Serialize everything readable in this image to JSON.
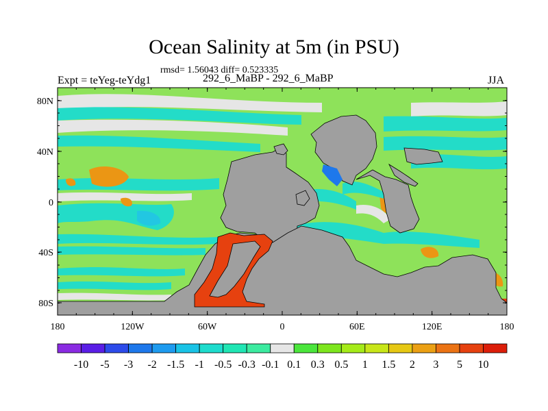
{
  "title": "Ocean Salinity at 5m (in PSU)",
  "stats": "rmsd= 1.56043 diff= 0.523335",
  "experiment": "Expt = teYeg-teYdg1",
  "subtitle": "292_6_MaBP - 292_6_MaBP",
  "season": "JJA",
  "lat_ticks": [
    "80N",
    "40N",
    "0",
    "40S",
    "80S"
  ],
  "lon_ticks": [
    "180",
    "120W",
    "60W",
    "0",
    "60E",
    "120E",
    "180"
  ],
  "colorbar": {
    "labels": [
      "-10",
      "-5",
      "-3",
      "-2",
      "-1.5",
      "-1",
      "-0.5",
      "-0.3",
      "-0.1",
      "0.1",
      "0.3",
      "0.5",
      "1",
      "1.5",
      "2",
      "3",
      "5",
      "10"
    ],
    "colors": [
      "#8a2be2",
      "#5a1ee6",
      "#2d4bea",
      "#1e78eb",
      "#1e9bef",
      "#19c3e6",
      "#1edccd",
      "#20e6b4",
      "#3ceba0",
      "#e6e6e6",
      "#4be63c",
      "#7de61e",
      "#a5eb19",
      "#c8e619",
      "#e6c814",
      "#eba014",
      "#eb7314",
      "#e6410f",
      "#dc1e0a"
    ]
  },
  "map_colors": {
    "land": "#9f9f9f",
    "ocean_base": "#8ee25a",
    "neutral": "#e6e6e6",
    "cyan": "#23dcc8",
    "teal": "#22c7e2",
    "blue": "#1e78eb",
    "orange": "#eb9614",
    "red": "#e6410f"
  }
}
